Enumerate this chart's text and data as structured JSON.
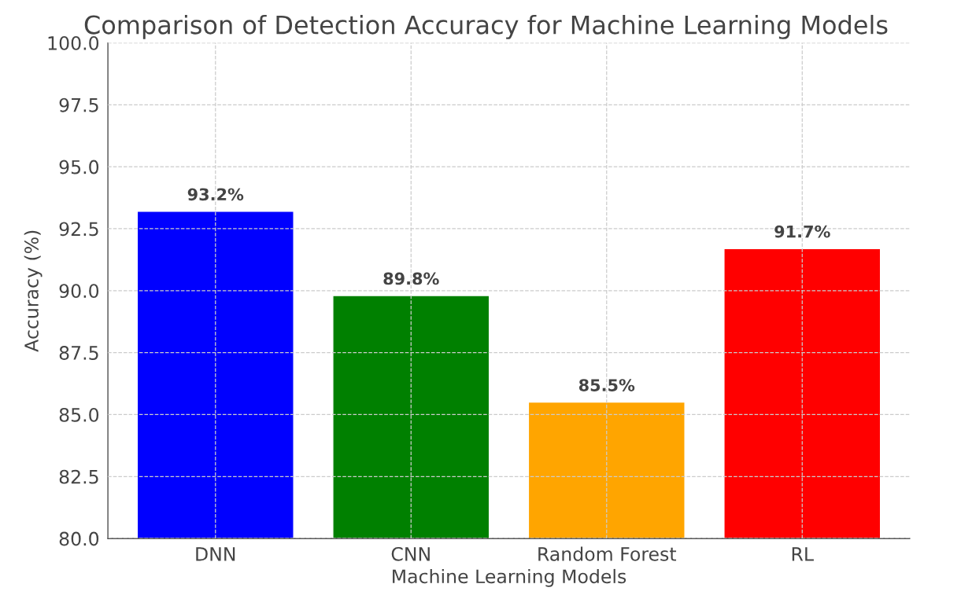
{
  "chart_data": {
    "type": "bar",
    "title": "Comparison of Detection Accuracy for Machine Learning Models",
    "xlabel": "Machine Learning Models",
    "ylabel": "Accuracy (%)",
    "categories": [
      "DNN",
      "CNN",
      "Random Forest",
      "RL"
    ],
    "values": [
      93.2,
      89.8,
      85.5,
      91.7
    ],
    "colors": [
      "#0000ff",
      "#008000",
      "#ffa500",
      "#ff0000"
    ],
    "value_labels": [
      "93.2%",
      "89.8%",
      "85.5%",
      "91.7%"
    ],
    "ylim": [
      80,
      100
    ],
    "yticks": [
      {
        "value": 80,
        "label": "80.0"
      },
      {
        "value": 82.5,
        "label": "82.5"
      },
      {
        "value": 85,
        "label": "85.0"
      },
      {
        "value": 87.5,
        "label": "87.5"
      },
      {
        "value": 90,
        "label": "90.0"
      },
      {
        "value": 92.5,
        "label": "92.5"
      },
      {
        "value": 95,
        "label": "95.0"
      },
      {
        "value": 97.5,
        "label": "97.5"
      },
      {
        "value": 100,
        "label": "100.0"
      }
    ],
    "grid": true
  }
}
